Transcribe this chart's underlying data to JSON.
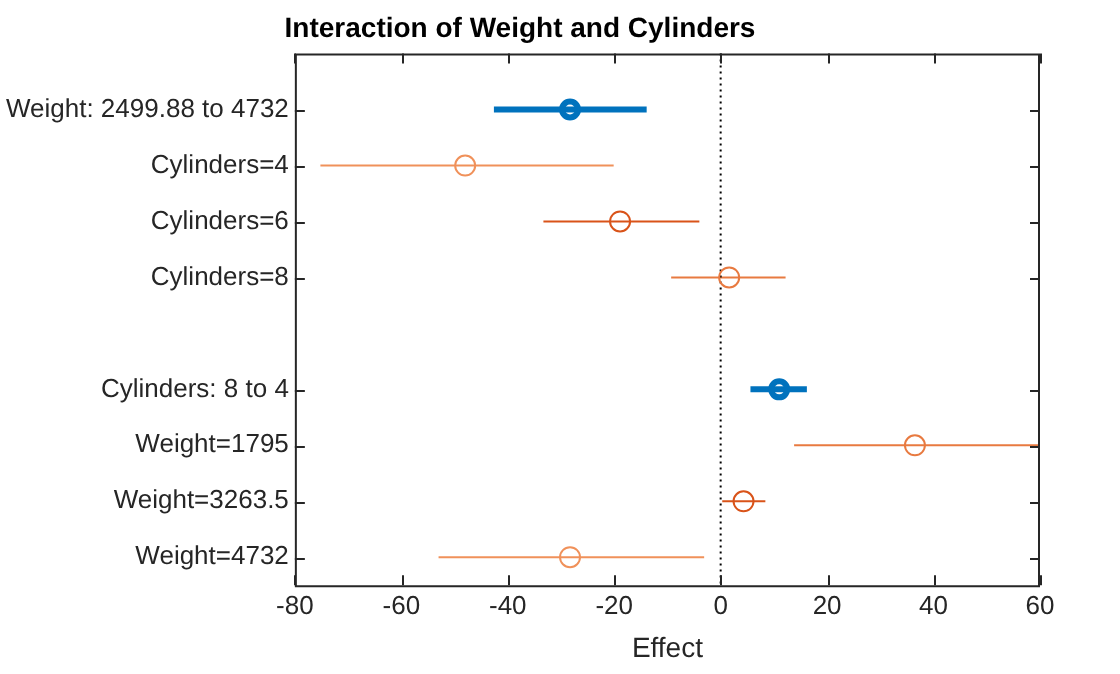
{
  "chart_data": {
    "type": "scatter",
    "orientation": "horizontal",
    "title": "Interaction of Weight and Cylinders",
    "xlabel": "Effect",
    "categories": [
      "Weight: 2499.88 to 4732",
      "Cylinders=4",
      "Cylinders=6",
      "Cylinders=8",
      null,
      "Cylinders: 8 to 4",
      "Weight=1795",
      "Weight=3263.5",
      "Weight=4732"
    ],
    "series": [
      {
        "color": "#0072bd",
        "values": [
          -28.3,
          null,
          null,
          null,
          null,
          11.0,
          null,
          null,
          null
        ],
        "errors": [
          [
            -42.6,
            -13.9
          ],
          null,
          null,
          null,
          null,
          [
            5.6,
            16.2
          ],
          null,
          null,
          null
        ]
      },
      {
        "color": "#d95319",
        "colors": [
          null,
          "#f0915a",
          "#d95319",
          "#e87a40",
          null,
          null,
          "#e87a40",
          "#d95319",
          "#f0915a"
        ],
        "values": [
          null,
          -48.0,
          -18.9,
          1.6,
          null,
          null,
          36.5,
          4.3,
          -28.3
        ],
        "errors": [
          null,
          [
            -75.2,
            -20.1
          ],
          [
            -33.3,
            -4.0
          ],
          [
            -9.3,
            12.2
          ],
          null,
          null,
          [
            13.8,
            60
          ],
          [
            0.3,
            8.4
          ],
          [
            -53.0,
            -3.1
          ]
        ]
      }
    ],
    "xlim": [
      -80,
      60
    ],
    "xticks": [
      -80,
      -60,
      -40,
      -20,
      0,
      20,
      40,
      60
    ],
    "ref_lines": [
      {
        "axis": "x",
        "value": 0,
        "color": "#000000",
        "line_style": "dotted"
      }
    ],
    "marker": "circle",
    "grid": false,
    "legend": false
  }
}
